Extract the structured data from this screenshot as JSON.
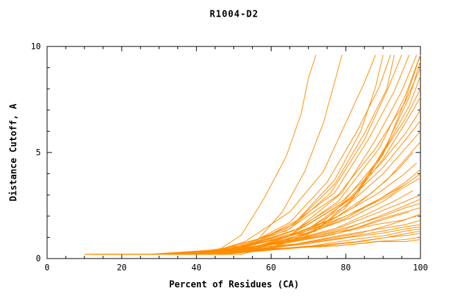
{
  "chart_data": {
    "type": "line",
    "title": "R1004-D2",
    "xlabel": "Percent of Residues (CA)",
    "ylabel": "Distance Cutoff, A",
    "xlim": [
      0,
      100
    ],
    "ylim": [
      0,
      10
    ],
    "x_major_ticks": [
      0,
      20,
      40,
      60,
      80,
      100
    ],
    "x_minor_step": 5,
    "y_major_ticks": [
      0,
      5,
      10
    ],
    "y_minor_step": 1,
    "grid": false,
    "legend": "none",
    "line_color": "#ff8c00",
    "series": [
      [
        [
          38,
          0.2
        ],
        [
          45,
          0.3
        ],
        [
          52,
          1.1
        ],
        [
          58,
          2.8
        ],
        [
          64,
          4.8
        ],
        [
          68,
          6.8
        ],
        [
          70,
          8.5
        ],
        [
          72,
          9.6
        ]
      ],
      [
        [
          40,
          0.2
        ],
        [
          48,
          0.2
        ],
        [
          56,
          0.8
        ],
        [
          63,
          2.2
        ],
        [
          69,
          4.1
        ],
        [
          74,
          6.4
        ],
        [
          77,
          8.3
        ],
        [
          79,
          9.6
        ]
      ],
      [
        [
          30,
          0.2
        ],
        [
          42,
          0.2
        ],
        [
          53,
          0.8
        ],
        [
          65,
          2.2
        ],
        [
          74,
          4.1
        ],
        [
          80,
          6.4
        ],
        [
          85,
          8.3
        ],
        [
          88,
          9.6
        ]
      ],
      [
        [
          25,
          0.2
        ],
        [
          38,
          0.2
        ],
        [
          52,
          0.5
        ],
        [
          65,
          1.7
        ],
        [
          75,
          3.6
        ],
        [
          83,
          6.0
        ],
        [
          89,
          8.1
        ],
        [
          92,
          9.6
        ]
      ],
      [
        [
          20,
          0.2
        ],
        [
          35,
          0.2
        ],
        [
          50,
          0.4
        ],
        [
          65,
          1.4
        ],
        [
          76,
          3.1
        ],
        [
          85,
          5.6
        ],
        [
          91,
          7.9
        ],
        [
          95,
          9.6
        ]
      ],
      [
        [
          15,
          0.2
        ],
        [
          31,
          0.2
        ],
        [
          48,
          0.4
        ],
        [
          64,
          1.4
        ],
        [
          77,
          3.1
        ],
        [
          86,
          5.6
        ],
        [
          93,
          7.9
        ],
        [
          97,
          9.6
        ]
      ],
      [
        [
          18,
          0.2
        ],
        [
          34,
          0.2
        ],
        [
          50,
          0.4
        ],
        [
          67,
          1.4
        ],
        [
          79,
          3.1
        ],
        [
          88,
          5.6
        ],
        [
          95,
          7.9
        ],
        [
          99,
          9.6
        ]
      ],
      [
        [
          12,
          0.2
        ],
        [
          30,
          0.2
        ],
        [
          47,
          0.3
        ],
        [
          65,
          1.1
        ],
        [
          78,
          2.7
        ],
        [
          89,
          5.2
        ],
        [
          96,
          7.7
        ],
        [
          100,
          9.6
        ]
      ],
      [
        [
          10,
          0.2
        ],
        [
          28,
          0.2
        ],
        [
          46,
          0.4
        ],
        [
          64,
          1.3
        ],
        [
          78,
          3.0
        ],
        [
          88,
          5.2
        ],
        [
          96,
          7.4
        ],
        [
          100,
          9.0
        ]
      ],
      [
        [
          14,
          0.2
        ],
        [
          31,
          0.2
        ],
        [
          48,
          0.4
        ],
        [
          66,
          1.2
        ],
        [
          79,
          2.6
        ],
        [
          89,
          4.7
        ],
        [
          96,
          6.6
        ],
        [
          100,
          8.0
        ]
      ],
      [
        [
          16,
          0.2
        ],
        [
          33,
          0.2
        ],
        [
          50,
          0.4
        ],
        [
          66,
          1.3
        ],
        [
          79,
          2.7
        ],
        [
          89,
          4.4
        ],
        [
          96,
          5.9
        ],
        [
          100,
          7.0
        ]
      ],
      [
        [
          22,
          0.2
        ],
        [
          38,
          0.2
        ],
        [
          53,
          0.6
        ],
        [
          69,
          1.5
        ],
        [
          81,
          2.8
        ],
        [
          90,
          4.3
        ],
        [
          96,
          5.6
        ],
        [
          100,
          6.5
        ]
      ],
      [
        [
          25,
          0.2
        ],
        [
          40,
          0.2
        ],
        [
          55,
          0.5
        ],
        [
          70,
          1.4
        ],
        [
          81,
          2.6
        ],
        [
          90,
          4.0
        ],
        [
          96,
          5.2
        ],
        [
          100,
          6.0
        ]
      ],
      [
        [
          28,
          0.2
        ],
        [
          42,
          0.2
        ],
        [
          57,
          0.5
        ],
        [
          71,
          1.3
        ],
        [
          82,
          2.4
        ],
        [
          91,
          3.7
        ],
        [
          96,
          4.7
        ],
        [
          100,
          5.5
        ]
      ],
      [
        [
          12,
          0.2
        ],
        [
          29,
          0.2
        ],
        [
          46,
          0.3
        ],
        [
          64,
          1.0
        ],
        [
          77,
          1.9
        ],
        [
          87,
          3.1
        ],
        [
          94,
          4.2
        ],
        [
          98,
          5.0
        ]
      ],
      [
        [
          15,
          0.2
        ],
        [
          32,
          0.2
        ],
        [
          49,
          0.4
        ],
        [
          65,
          1.1
        ],
        [
          78,
          2.0
        ],
        [
          88,
          3.0
        ],
        [
          95,
          3.9
        ],
        [
          99,
          4.5
        ]
      ],
      [
        [
          18,
          0.2
        ],
        [
          34,
          0.2
        ],
        [
          51,
          0.4
        ],
        [
          67,
          1.0
        ],
        [
          80,
          1.9
        ],
        [
          89,
          2.8
        ],
        [
          96,
          3.6
        ],
        [
          100,
          4.2
        ]
      ],
      [
        [
          20,
          0.2
        ],
        [
          36,
          0.2
        ],
        [
          52,
          0.5
        ],
        [
          68,
          1.2
        ],
        [
          80,
          2.0
        ],
        [
          90,
          2.9
        ],
        [
          96,
          3.5
        ],
        [
          100,
          4.0
        ]
      ],
      [
        [
          24,
          0.2
        ],
        [
          39,
          0.2
        ],
        [
          54,
          0.5
        ],
        [
          70,
          1.2
        ],
        [
          81,
          1.9
        ],
        [
          90,
          2.7
        ],
        [
          96,
          3.4
        ],
        [
          100,
          3.8
        ]
      ],
      [
        [
          10,
          0.2
        ],
        [
          27,
          0.2
        ],
        [
          44,
          0.4
        ],
        [
          62,
          0.9
        ],
        [
          75,
          1.6
        ],
        [
          85,
          2.4
        ],
        [
          92,
          3.0
        ],
        [
          96,
          3.5
        ]
      ],
      [
        [
          13,
          0.2
        ],
        [
          30,
          0.2
        ],
        [
          47,
          0.3
        ],
        [
          64,
          0.8
        ],
        [
          77,
          1.4
        ],
        [
          87,
          2.2
        ],
        [
          94,
          2.8
        ],
        [
          98,
          3.2
        ]
      ],
      [
        [
          16,
          0.2
        ],
        [
          33,
          0.2
        ],
        [
          50,
          0.4
        ],
        [
          66,
          0.9
        ],
        [
          79,
          1.5
        ],
        [
          89,
          2.2
        ],
        [
          96,
          2.7
        ],
        [
          100,
          3.0
        ]
      ],
      [
        [
          19,
          0.2
        ],
        [
          35,
          0.2
        ],
        [
          51,
          0.4
        ],
        [
          68,
          0.9
        ],
        [
          80,
          1.4
        ],
        [
          89,
          2.0
        ],
        [
          96,
          2.5
        ],
        [
          100,
          2.8
        ]
      ],
      [
        [
          22,
          0.2
        ],
        [
          38,
          0.2
        ],
        [
          53,
          0.5
        ],
        [
          69,
          1.0
        ],
        [
          81,
          1.5
        ],
        [
          90,
          2.0
        ],
        [
          96,
          2.4
        ],
        [
          100,
          2.6
        ]
      ],
      [
        [
          26,
          0.2
        ],
        [
          41,
          0.2
        ],
        [
          56,
          0.5
        ],
        [
          70,
          1.0
        ],
        [
          82,
          1.4
        ],
        [
          90,
          1.9
        ],
        [
          96,
          2.2
        ],
        [
          100,
          2.4
        ]
      ],
      [
        [
          11,
          0.2
        ],
        [
          28,
          0.2
        ],
        [
          45,
          0.4
        ],
        [
          63,
          0.7
        ],
        [
          76,
          1.1
        ],
        [
          86,
          1.6
        ],
        [
          93,
          2.0
        ],
        [
          97,
          2.2
        ]
      ],
      [
        [
          14,
          0.2
        ],
        [
          31,
          0.2
        ],
        [
          48,
          0.4
        ],
        [
          65,
          0.8
        ],
        [
          78,
          1.2
        ],
        [
          88,
          1.6
        ],
        [
          95,
          1.8
        ],
        [
          99,
          2.0
        ]
      ],
      [
        [
          17,
          0.2
        ],
        [
          34,
          0.2
        ],
        [
          50,
          0.4
        ],
        [
          67,
          0.7
        ],
        [
          79,
          1.1
        ],
        [
          89,
          1.4
        ],
        [
          96,
          1.6
        ],
        [
          100,
          1.8
        ]
      ],
      [
        [
          21,
          0.2
        ],
        [
          37,
          0.2
        ],
        [
          53,
          0.4
        ],
        [
          68,
          0.7
        ],
        [
          80,
          1.0
        ],
        [
          90,
          1.3
        ],
        [
          96,
          1.5
        ],
        [
          100,
          1.6
        ]
      ],
      [
        [
          24,
          0.2
        ],
        [
          39,
          0.2
        ],
        [
          54,
          0.4
        ],
        [
          70,
          0.7
        ],
        [
          81,
          1.0
        ],
        [
          90,
          1.2
        ],
        [
          96,
          1.4
        ],
        [
          100,
          1.5
        ]
      ],
      [
        [
          28,
          0.2
        ],
        [
          42,
          0.2
        ],
        [
          57,
          0.4
        ],
        [
          71,
          0.6
        ],
        [
          82,
          0.9
        ],
        [
          91,
          1.1
        ],
        [
          96,
          1.3
        ],
        [
          100,
          1.4
        ]
      ],
      [
        [
          31,
          0.2
        ],
        [
          45,
          0.2
        ],
        [
          59,
          0.4
        ],
        [
          72,
          0.6
        ],
        [
          83,
          0.8
        ],
        [
          91,
          1.0
        ],
        [
          97,
          1.2
        ],
        [
          100,
          1.3
        ]
      ],
      [
        [
          34,
          0.2
        ],
        [
          47,
          0.2
        ],
        [
          60,
          0.4
        ],
        [
          74,
          0.6
        ],
        [
          84,
          0.8
        ],
        [
          91,
          1.0
        ],
        [
          97,
          1.1
        ],
        [
          100,
          1.2
        ]
      ],
      [
        [
          10,
          0.2
        ],
        [
          28,
          0.2
        ],
        [
          46,
          0.3
        ],
        [
          64,
          0.5
        ],
        [
          78,
          0.6
        ],
        [
          88,
          0.8
        ],
        [
          96,
          0.9
        ],
        [
          100,
          1.0
        ]
      ],
      [
        [
          20,
          0.2
        ],
        [
          36,
          0.2
        ],
        [
          52,
          0.2
        ],
        [
          68,
          0.9
        ],
        [
          80,
          2.4
        ],
        [
          90,
          4.9
        ],
        [
          96,
          7.5
        ],
        [
          100,
          9.6
        ]
      ],
      [
        [
          30,
          0.2
        ],
        [
          44,
          0.2
        ],
        [
          58,
          0.4
        ],
        [
          72,
          1.3
        ],
        [
          83,
          3.0
        ],
        [
          91,
          5.4
        ],
        [
          97,
          7.6
        ],
        [
          100,
          9.3
        ]
      ],
      [
        [
          33,
          0.2
        ],
        [
          46,
          0.2
        ],
        [
          60,
          0.5
        ],
        [
          73,
          1.6
        ],
        [
          83,
          3.2
        ],
        [
          91,
          5.3
        ],
        [
          97,
          7.2
        ],
        [
          100,
          8.6
        ]
      ],
      [
        [
          26,
          0.2
        ],
        [
          41,
          0.2
        ],
        [
          56,
          0.5
        ],
        [
          70,
          1.4
        ],
        [
          82,
          2.9
        ],
        [
          90,
          4.7
        ],
        [
          96,
          6.4
        ],
        [
          100,
          7.6
        ]
      ],
      [
        [
          12,
          0.2
        ],
        [
          30,
          0.2
        ],
        [
          47,
          0.3
        ],
        [
          65,
          0.5
        ],
        [
          78,
          0.6
        ],
        [
          89,
          0.8
        ],
        [
          96,
          0.8
        ],
        [
          100,
          0.9
        ]
      ],
      [
        [
          35,
          0.2
        ],
        [
          48,
          0.2
        ],
        [
          61,
          0.5
        ],
        [
          74,
          0.9
        ],
        [
          84,
          1.2
        ],
        [
          92,
          1.6
        ],
        [
          97,
          1.9
        ],
        [
          100,
          2.1
        ]
      ],
      [
        [
          27,
          0.2
        ],
        [
          40,
          0.2
        ],
        [
          54,
          0.6
        ],
        [
          67,
          1.8
        ],
        [
          77,
          3.7
        ],
        [
          84,
          6.0
        ],
        [
          88,
          8.1
        ],
        [
          90,
          9.6
        ]
      ],
      [
        [
          23,
          0.2
        ],
        [
          37,
          0.2
        ],
        [
          51,
          0.5
        ],
        [
          66,
          1.6
        ],
        [
          77,
          3.5
        ],
        [
          85,
          5.9
        ],
        [
          91,
          8.0
        ],
        [
          93,
          9.6
        ]
      ]
    ]
  }
}
